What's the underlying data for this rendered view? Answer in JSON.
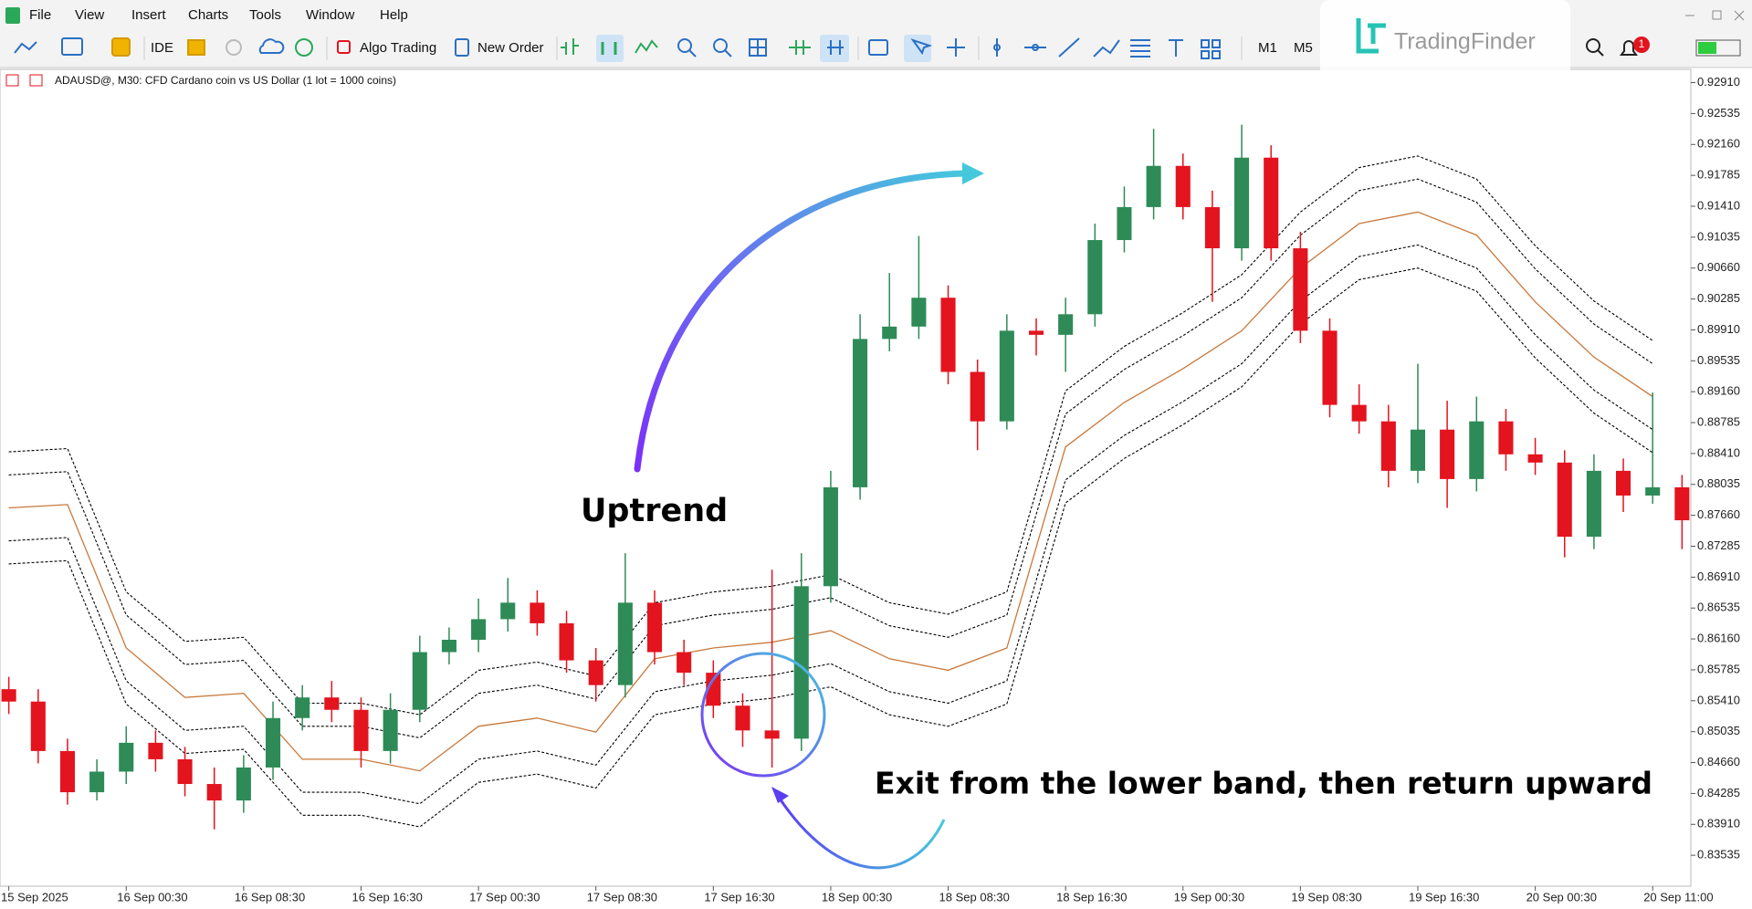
{
  "menu": [
    "File",
    "View",
    "Insert",
    "Charts",
    "Tools",
    "Window",
    "Help"
  ],
  "toolbar": {
    "ide": "IDE",
    "algo_trading": "Algo Trading",
    "new_order": "New Order",
    "m1": "M1",
    "m5": "M5",
    "alerts": "1"
  },
  "watermark": "TradingFinder",
  "chart_data": {
    "type": "candlestick",
    "title": "ADAUSD@, M30:  CFD Cardano coin vs US Dollar (1 lot = 1000 coins)",
    "annotations": [
      "Uptrend",
      "Exit from the lower band, then return upward"
    ],
    "up_color": "#2e8b57",
    "down_color": "#e3141e",
    "grid": false,
    "open": [
      0.8555,
      0.854,
      0.848,
      0.843,
      0.8455,
      0.849,
      0.847,
      0.844,
      0.842,
      0.846,
      0.852,
      0.8545,
      0.853,
      0.848,
      0.853,
      0.86,
      0.8615,
      0.864,
      0.866,
      0.8635,
      0.859,
      0.856,
      0.866,
      0.86,
      0.8575,
      0.8535,
      0.8505,
      0.8495,
      0.868,
      0.88,
      0.898,
      0.8995,
      0.903,
      0.894,
      0.888,
      0.899,
      0.8985,
      0.901,
      0.91,
      0.914,
      0.919,
      0.914,
      0.909,
      0.92,
      0.909,
      0.899,
      0.89,
      0.888,
      0.882,
      0.887,
      0.881,
      0.888,
      0.884,
      0.883,
      0.874,
      0.882,
      0.879,
      0.88
    ],
    "high": [
      0.857,
      0.8555,
      0.8495,
      0.847,
      0.851,
      0.8505,
      0.8485,
      0.846,
      0.8475,
      0.854,
      0.856,
      0.8565,
      0.8545,
      0.855,
      0.862,
      0.863,
      0.8665,
      0.869,
      0.8675,
      0.865,
      0.8605,
      0.872,
      0.8675,
      0.8615,
      0.859,
      0.855,
      0.87,
      0.872,
      0.882,
      0.901,
      0.906,
      0.9105,
      0.9045,
      0.8955,
      0.901,
      0.9005,
      0.903,
      0.912,
      0.9165,
      0.9235,
      0.9205,
      0.916,
      0.924,
      0.9215,
      0.911,
      0.9005,
      0.8925,
      0.89,
      0.895,
      0.8905,
      0.891,
      0.8895,
      0.886,
      0.8845,
      0.884,
      0.8835,
      0.8915,
      0.8815
    ],
    "low": [
      0.8525,
      0.8465,
      0.8415,
      0.842,
      0.844,
      0.8455,
      0.8425,
      0.8385,
      0.8405,
      0.8445,
      0.8505,
      0.8515,
      0.846,
      0.8465,
      0.8515,
      0.8585,
      0.86,
      0.8625,
      0.862,
      0.8575,
      0.854,
      0.8545,
      0.8585,
      0.856,
      0.852,
      0.8485,
      0.846,
      0.848,
      0.866,
      0.8785,
      0.8965,
      0.898,
      0.8925,
      0.8845,
      0.887,
      0.896,
      0.894,
      0.8995,
      0.9085,
      0.9125,
      0.9125,
      0.9025,
      0.9075,
      0.9075,
      0.8975,
      0.8885,
      0.8865,
      0.88,
      0.8805,
      0.8775,
      0.8795,
      0.882,
      0.8815,
      0.8715,
      0.8725,
      0.877,
      0.878,
      0.8725
    ],
    "close": [
      0.854,
      0.848,
      0.843,
      0.8455,
      0.849,
      0.847,
      0.844,
      0.842,
      0.846,
      0.852,
      0.8545,
      0.853,
      0.848,
      0.853,
      0.86,
      0.8615,
      0.864,
      0.866,
      0.8635,
      0.859,
      0.856,
      0.866,
      0.86,
      0.8575,
      0.8535,
      0.8505,
      0.8495,
      0.868,
      0.88,
      0.898,
      0.8995,
      0.903,
      0.894,
      0.888,
      0.899,
      0.8985,
      0.901,
      0.91,
      0.914,
      0.919,
      0.914,
      0.909,
      0.92,
      0.909,
      0.899,
      0.89,
      0.888,
      0.882,
      0.887,
      0.881,
      0.888,
      0.884,
      0.883,
      0.874,
      0.882,
      0.879,
      0.88,
      0.876
    ],
    "band_x": [
      0,
      2,
      4,
      6,
      8,
      10,
      12,
      14,
      16,
      18,
      20,
      22,
      24,
      26,
      28,
      30,
      32,
      34,
      36,
      38,
      40,
      42,
      44,
      46,
      48,
      50,
      52,
      54,
      56
    ],
    "bands": [
      {
        "color": "#000000",
        "dashed": true,
        "values": [
          0.8843,
          0.8847,
          0.8673,
          0.8613,
          0.8618,
          0.8538,
          0.8538,
          0.8524,
          0.8578,
          0.8588,
          0.8571,
          0.866,
          0.8673,
          0.868,
          0.8694,
          0.866,
          0.8646,
          0.8673,
          0.8917,
          0.8971,
          0.9012,
          0.9058,
          0.9134,
          0.9188,
          0.9202,
          0.9174,
          0.9093,
          0.9026,
          0.8978
        ]
      },
      {
        "color": "#000000",
        "dashed": true,
        "values": [
          0.8815,
          0.8819,
          0.8645,
          0.8585,
          0.859,
          0.851,
          0.851,
          0.8496,
          0.855,
          0.856,
          0.8543,
          0.8632,
          0.8645,
          0.8652,
          0.8666,
          0.8632,
          0.8618,
          0.8645,
          0.8889,
          0.8943,
          0.8984,
          0.903,
          0.9106,
          0.916,
          0.9174,
          0.9146,
          0.9065,
          0.8998,
          0.895
        ]
      },
      {
        "color": "#c8783c",
        "dashed": false,
        "values": [
          0.8775,
          0.8779,
          0.8605,
          0.8545,
          0.855,
          0.847,
          0.847,
          0.8456,
          0.851,
          0.852,
          0.8503,
          0.8592,
          0.8605,
          0.8612,
          0.8626,
          0.8592,
          0.8578,
          0.8605,
          0.8849,
          0.8903,
          0.8944,
          0.899,
          0.9066,
          0.912,
          0.9134,
          0.9106,
          0.9025,
          0.8958,
          0.891
        ]
      },
      {
        "color": "#000000",
        "dashed": true,
        "values": [
          0.8735,
          0.8739,
          0.8565,
          0.8505,
          0.851,
          0.843,
          0.843,
          0.8416,
          0.847,
          0.848,
          0.8463,
          0.8552,
          0.8565,
          0.8572,
          0.8586,
          0.8552,
          0.8538,
          0.8565,
          0.8809,
          0.8863,
          0.8904,
          0.895,
          0.9026,
          0.908,
          0.9094,
          0.9066,
          0.8985,
          0.8918,
          0.887
        ]
      },
      {
        "color": "#000000",
        "dashed": true,
        "values": [
          0.8707,
          0.8711,
          0.8537,
          0.8477,
          0.8482,
          0.8402,
          0.8402,
          0.8388,
          0.8442,
          0.8452,
          0.8435,
          0.8524,
          0.8537,
          0.8544,
          0.8558,
          0.8524,
          0.851,
          0.8537,
          0.8781,
          0.8835,
          0.8876,
          0.8922,
          0.8998,
          0.9052,
          0.9066,
          0.9038,
          0.8957,
          0.889,
          0.8842
        ]
      }
    ],
    "xlim": [
      -0.3,
      57.3
    ],
    "xticks": [
      {
        "value": 0,
        "label": "15 Sep 2025"
      },
      {
        "value": 4,
        "label": "16 Sep 00:30"
      },
      {
        "value": 8,
        "label": "16 Sep 08:30"
      },
      {
        "value": 12,
        "label": "16 Sep 16:30"
      },
      {
        "value": 16,
        "label": "17 Sep 00:30"
      },
      {
        "value": 20,
        "label": "17 Sep 08:30"
      },
      {
        "value": 24,
        "label": "17 Sep 16:30"
      },
      {
        "value": 28,
        "label": "18 Sep 00:30"
      },
      {
        "value": 32,
        "label": "18 Sep 08:30"
      },
      {
        "value": 36,
        "label": "18 Sep 16:30"
      },
      {
        "value": 40,
        "label": "19 Sep 00:30"
      },
      {
        "value": 44,
        "label": "19 Sep 08:30"
      },
      {
        "value": 48,
        "label": "19 Sep 16:30"
      },
      {
        "value": 52,
        "label": "20 Sep 00:30"
      },
      {
        "value": 56,
        "label": "20 Sep 11:00"
      }
    ],
    "ylim": [
      0.8316,
      0.9306
    ],
    "yticks": [
      {
        "value": 0.9291,
        "label": "0.92910"
      },
      {
        "value": 0.92535,
        "label": "0.92535"
      },
      {
        "value": 0.9216,
        "label": "0.92160"
      },
      {
        "value": 0.91785,
        "label": "0.91785"
      },
      {
        "value": 0.9141,
        "label": "0.91410"
      },
      {
        "value": 0.91035,
        "label": "0.91035"
      },
      {
        "value": 0.9066,
        "label": "0.90660"
      },
      {
        "value": 0.90285,
        "label": "0.90285"
      },
      {
        "value": 0.8991,
        "label": "0.89910"
      },
      {
        "value": 0.89535,
        "label": "0.89535"
      },
      {
        "value": 0.8916,
        "label": "0.89160"
      },
      {
        "value": 0.88785,
        "label": "0.88785"
      },
      {
        "value": 0.8841,
        "label": "0.88410"
      },
      {
        "value": 0.88035,
        "label": "0.88035"
      },
      {
        "value": 0.8766,
        "label": "0.87660"
      },
      {
        "value": 0.87285,
        "label": "0.87285"
      },
      {
        "value": 0.8691,
        "label": "0.86910"
      },
      {
        "value": 0.86535,
        "label": "0.86535"
      },
      {
        "value": 0.8616,
        "label": "0.86160"
      },
      {
        "value": 0.85785,
        "label": "0.85785"
      },
      {
        "value": 0.8541,
        "label": "0.85410"
      },
      {
        "value": 0.85035,
        "label": "0.85035"
      },
      {
        "value": 0.8466,
        "label": "0.84660"
      },
      {
        "value": 0.84285,
        "label": "0.84285"
      },
      {
        "value": 0.8391,
        "label": "0.83910"
      },
      {
        "value": 0.83535,
        "label": "0.83535"
      }
    ]
  }
}
